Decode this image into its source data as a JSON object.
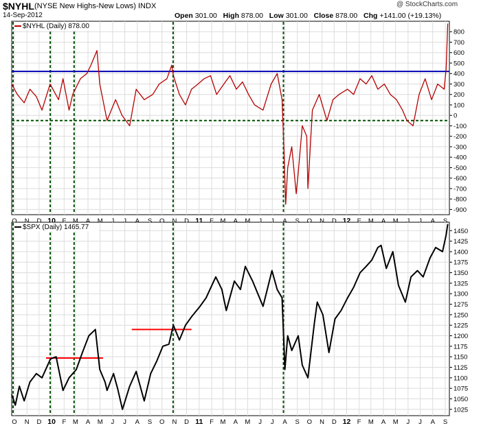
{
  "header": {
    "symbol": "$NYHL",
    "description": "(NYSE New Highs-New Lows)",
    "exchange": "INDX",
    "date": "14-Sep-2012",
    "open_label": "Open",
    "open": "301.00",
    "high_label": "High",
    "high": "878.00",
    "low_label": "Low",
    "low": "301.00",
    "close_label": "Close",
    "close": "878.00",
    "chg_label": "Chg",
    "chg": "+141.00 (+19.13%)",
    "watermark": "@ StockCharts.com"
  },
  "colors": {
    "nyhl_line": "#b40000",
    "spx_line": "#000000",
    "ref_level": "#0000b4",
    "zero_line": "#005000",
    "vertical_markers": "#005000",
    "resistance": "#ff0000",
    "grid": "#dcdcdc"
  },
  "chart_data": [
    {
      "type": "line",
      "panel_label": "$NYHL (Daily) 878.00",
      "ylim": [
        -950,
        900
      ],
      "y_ticks": [
        -900,
        -800,
        -700,
        -600,
        -500,
        -400,
        -300,
        -200,
        -100,
        0,
        100,
        200,
        300,
        400,
        500,
        600,
        700,
        800
      ],
      "x_ticks": [
        "O",
        "N",
        "D",
        "10",
        "F",
        "M",
        "A",
        "M",
        "J",
        "J",
        "A",
        "S",
        "O",
        "N",
        "D",
        "11",
        "F",
        "M",
        "A",
        "M",
        "J",
        "J",
        "A",
        "S",
        "O",
        "N",
        "D",
        "12",
        "F",
        "M",
        "A",
        "M",
        "J",
        "J",
        "A",
        "S"
      ],
      "horizontal_lines": [
        {
          "y": 420,
          "style": "solid"
        },
        {
          "y": -50,
          "style": "dashed"
        }
      ],
      "vertical_markers": [
        "Oct 2009",
        "Jan 2010",
        "Mar 2010",
        "Nov 2010",
        "Aug 2011"
      ],
      "series": [
        {
          "x": [
            "2009-10-01",
            "2009-10-15",
            "2009-11-01",
            "2009-11-15",
            "2009-12-01",
            "2009-12-15",
            "2010-01-04",
            "2010-01-25",
            "2010-02-05",
            "2010-02-20",
            "2010-03-01",
            "2010-03-20",
            "2010-04-05",
            "2010-04-15",
            "2010-04-30",
            "2010-05-07",
            "2010-05-25",
            "2010-06-15",
            "2010-07-01",
            "2010-07-20",
            "2010-08-05",
            "2010-08-25",
            "2010-09-15",
            "2010-10-01",
            "2010-10-20",
            "2010-11-01",
            "2010-11-05",
            "2010-11-20",
            "2010-12-05",
            "2010-12-20",
            "2011-01-05",
            "2011-01-20",
            "2011-02-05",
            "2011-02-20",
            "2011-03-10",
            "2011-03-25",
            "2011-04-10",
            "2011-04-25",
            "2011-05-10",
            "2011-05-25",
            "2011-06-15",
            "2011-07-05",
            "2011-07-20",
            "2011-08-01",
            "2011-08-05",
            "2011-08-10",
            "2011-08-15",
            "2011-08-25",
            "2011-09-05",
            "2011-09-10",
            "2011-09-20",
            "2011-10-01",
            "2011-10-04",
            "2011-10-15",
            "2011-11-01",
            "2011-11-20",
            "2011-12-05",
            "2011-12-20",
            "2012-01-10",
            "2012-01-25",
            "2012-02-10",
            "2012-02-25",
            "2012-03-10",
            "2012-03-25",
            "2012-04-10",
            "2012-04-25",
            "2012-05-10",
            "2012-05-25",
            "2012-06-05",
            "2012-06-20",
            "2012-07-05",
            "2012-07-20",
            "2012-08-05",
            "2012-08-20",
            "2012-09-05",
            "2012-09-10",
            "2012-09-14"
          ],
          "values": [
            300,
            200,
            120,
            250,
            180,
            50,
            300,
            150,
            350,
            50,
            200,
            350,
            400,
            480,
            620,
            300,
            -50,
            150,
            0,
            -100,
            250,
            150,
            200,
            300,
            350,
            480,
            380,
            200,
            100,
            250,
            300,
            350,
            380,
            200,
            300,
            380,
            250,
            320,
            200,
            100,
            50,
            300,
            400,
            150,
            -250,
            -850,
            -500,
            -300,
            -750,
            -550,
            -100,
            -200,
            -700,
            50,
            200,
            -50,
            150,
            200,
            250,
            200,
            350,
            300,
            380,
            250,
            300,
            200,
            150,
            50,
            -50,
            -100,
            200,
            350,
            150,
            300,
            250,
            450,
            878
          ]
        }
      ]
    },
    {
      "type": "line",
      "panel_label": "$SPX (Daily) 1465.77",
      "ylim": [
        1010,
        1470
      ],
      "y_ticks": [
        1025,
        1050,
        1075,
        1100,
        1125,
        1150,
        1175,
        1200,
        1225,
        1250,
        1275,
        1300,
        1325,
        1350,
        1375,
        1400,
        1425,
        1450
      ],
      "x_ticks": [
        "O",
        "N",
        "D",
        "10",
        "F",
        "M",
        "A",
        "M",
        "J",
        "J",
        "A",
        "S",
        "O",
        "N",
        "D",
        "11",
        "F",
        "M",
        "A",
        "M",
        "J",
        "J",
        "A",
        "S",
        "O",
        "N",
        "D",
        "12",
        "F",
        "M",
        "A",
        "M",
        "J",
        "J",
        "A",
        "S"
      ],
      "horizontal_lines": [
        {
          "y": 1147,
          "x_range": [
            "2009-12-25",
            "2010-05-15"
          ]
        },
        {
          "y": 1215,
          "x_range": [
            "2010-07-25",
            "2010-12-20"
          ]
        }
      ],
      "vertical_markers": [
        "Oct 2009",
        "Jan 2010",
        "Mar 2010",
        "Nov 2010",
        "Aug 2011"
      ],
      "series": [
        {
          "x": [
            "2009-10-01",
            "2009-10-10",
            "2009-10-20",
            "2009-11-01",
            "2009-11-15",
            "2009-12-01",
            "2009-12-15",
            "2010-01-05",
            "2010-01-19",
            "2010-02-05",
            "2010-02-20",
            "2010-03-10",
            "2010-03-25",
            "2010-04-10",
            "2010-04-26",
            "2010-05-07",
            "2010-05-20",
            "2010-05-25",
            "2010-06-10",
            "2010-06-20",
            "2010-07-02",
            "2010-07-20",
            "2010-08-05",
            "2010-08-25",
            "2010-09-10",
            "2010-09-25",
            "2010-10-10",
            "2010-10-25",
            "2010-11-05",
            "2010-11-20",
            "2010-12-05",
            "2010-12-20",
            "2011-01-10",
            "2011-01-25",
            "2011-02-18",
            "2011-03-05",
            "2011-03-16",
            "2011-04-05",
            "2011-04-20",
            "2011-05-02",
            "2011-05-20",
            "2011-06-15",
            "2011-07-07",
            "2011-07-20",
            "2011-08-01",
            "2011-08-08",
            "2011-08-15",
            "2011-08-25",
            "2011-09-10",
            "2011-09-20",
            "2011-10-04",
            "2011-10-20",
            "2011-10-27",
            "2011-11-10",
            "2011-11-25",
            "2011-12-10",
            "2011-12-25",
            "2012-01-10",
            "2012-01-25",
            "2012-02-10",
            "2012-02-25",
            "2012-03-10",
            "2012-03-25",
            "2012-04-02",
            "2012-04-15",
            "2012-05-01",
            "2012-05-15",
            "2012-06-01",
            "2012-06-15",
            "2012-07-01",
            "2012-07-15",
            "2012-08-01",
            "2012-08-15",
            "2012-09-01",
            "2012-09-10",
            "2012-09-14"
          ],
          "values": [
            1060,
            1035,
            1080,
            1045,
            1090,
            1110,
            1100,
            1145,
            1150,
            1070,
            1100,
            1120,
            1160,
            1200,
            1215,
            1120,
            1090,
            1070,
            1110,
            1075,
            1025,
            1080,
            1115,
            1045,
            1110,
            1140,
            1175,
            1180,
            1225,
            1190,
            1225,
            1245,
            1270,
            1290,
            1340,
            1310,
            1260,
            1330,
            1310,
            1365,
            1330,
            1270,
            1355,
            1310,
            1290,
            1120,
            1200,
            1165,
            1200,
            1130,
            1100,
            1230,
            1280,
            1250,
            1160,
            1240,
            1260,
            1290,
            1315,
            1350,
            1365,
            1380,
            1410,
            1415,
            1360,
            1400,
            1320,
            1280,
            1340,
            1355,
            1340,
            1385,
            1410,
            1400,
            1440,
            1465.77
          ]
        }
      ]
    }
  ]
}
